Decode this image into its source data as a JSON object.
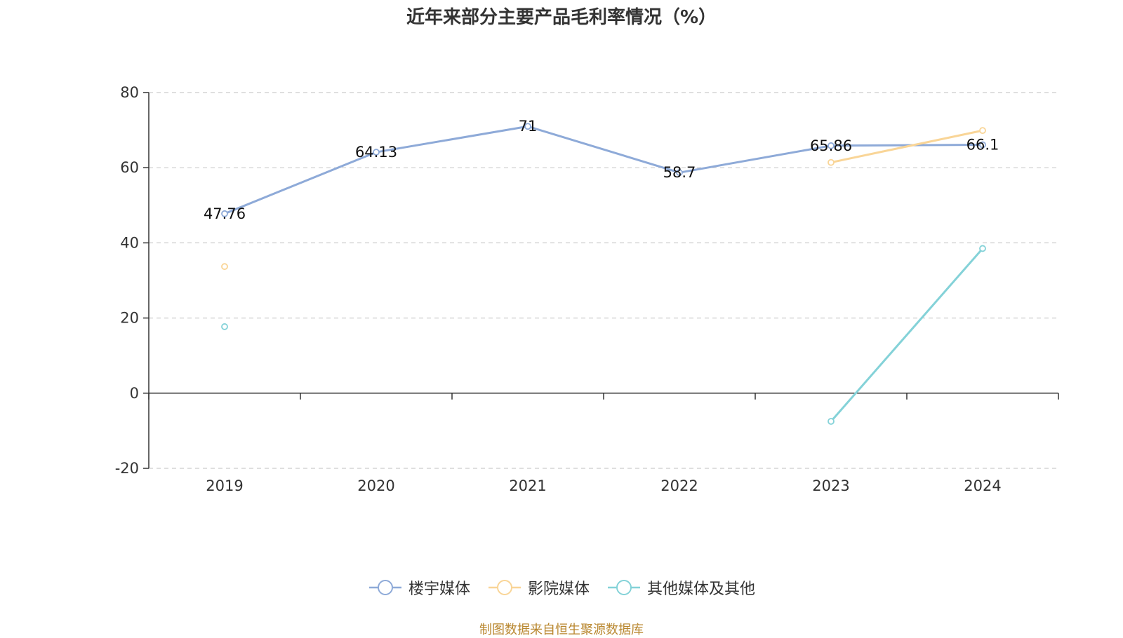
{
  "chart_data": {
    "type": "line",
    "title": "近年来部分主要产品毛利率情况（%）",
    "categories": [
      "2019",
      "2020",
      "2021",
      "2022",
      "2023",
      "2024"
    ],
    "ylim": [
      -20,
      80
    ],
    "yticks": [
      -20,
      0,
      20,
      40,
      60,
      80
    ],
    "grid": true,
    "legend_position": "bottom",
    "series": [
      {
        "name": "楼宇媒体",
        "color": "#8eaad8",
        "values": [
          47.76,
          64.13,
          71,
          58.7,
          65.86,
          66.1
        ],
        "labels": [
          "47.76",
          "64.13",
          "71",
          "58.7",
          "65.86",
          "66.1"
        ]
      },
      {
        "name": "影院媒体",
        "color": "#f9d597",
        "values": [
          33.7,
          null,
          null,
          null,
          61.4,
          69.9
        ],
        "labels": []
      },
      {
        "name": "其他媒体及其他",
        "color": "#84d2d8",
        "values": [
          17.7,
          null,
          null,
          null,
          -7.5,
          38.5
        ],
        "labels": []
      }
    ]
  },
  "source": "制图数据来自恒生聚源数据库"
}
